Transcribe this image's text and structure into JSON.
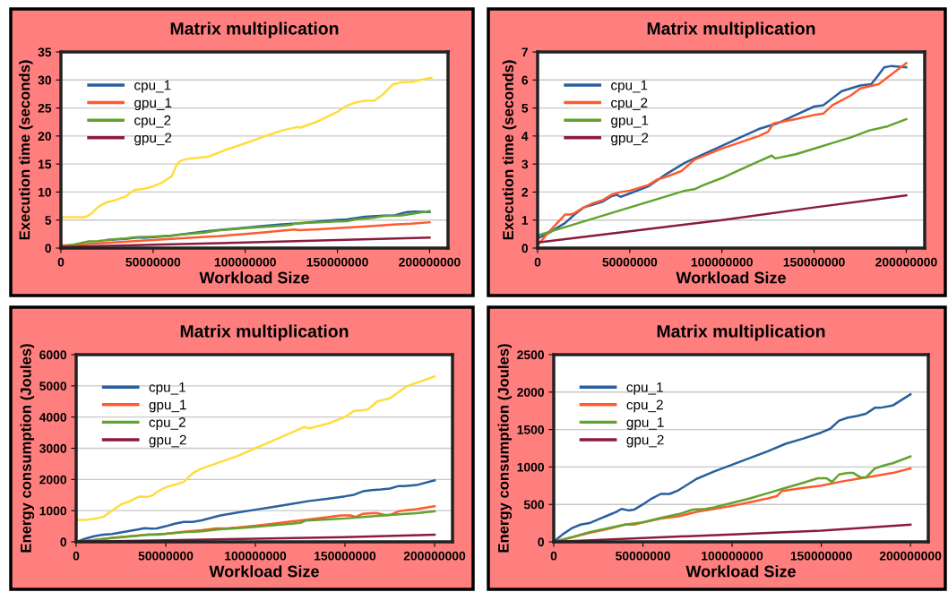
{
  "chart_data": [
    {
      "type": "line",
      "title": "Matrix multiplication",
      "xlabel": "Workload Size",
      "ylabel": "Execution time (seconds)",
      "xlim": [
        0,
        210000000
      ],
      "xticks": [
        0,
        50000000,
        100000000,
        150000000,
        200000000
      ],
      "ylim": [
        0,
        35
      ],
      "yticks": [
        0,
        5,
        10,
        15,
        20,
        25,
        30,
        35
      ],
      "grid": "y",
      "legend": "top left",
      "marker": "none",
      "line_style": "solid",
      "series": [
        {
          "name": "cpu_1",
          "color": "#2a5f9e",
          "x": [
            25000000,
            30000000,
            35000000,
            40000000,
            43000000,
            45000000,
            50000000,
            60000000,
            70000000,
            80000000,
            90000000,
            100000000,
            110000000,
            120000000,
            130000000,
            140000000,
            150000000,
            155000000,
            160000000,
            165000000,
            175000000,
            181000000,
            184000000,
            188000000,
            192000000,
            200000000
          ],
          "values": [
            1.45,
            1.55,
            1.65,
            1.85,
            1.9,
            1.83,
            1.95,
            2.2,
            2.65,
            3.05,
            3.35,
            3.65,
            3.95,
            4.25,
            4.45,
            4.75,
            5.05,
            5.1,
            5.35,
            5.6,
            5.8,
            5.85,
            6.1,
            6.45,
            6.5,
            6.45
          ]
        },
        {
          "name": "gpu_1",
          "color": "#ff5a2e",
          "x": [
            0,
            10000000,
            20000000,
            30000000,
            40000000,
            50000000,
            60000000,
            70000000,
            80000000,
            85000000,
            90000000,
            100000000,
            110000000,
            120000000,
            127000000,
            129000000,
            140000000,
            150000000,
            160000000,
            170000000,
            180000000,
            190000000,
            200000000
          ],
          "values": [
            0.45,
            0.65,
            0.85,
            1.05,
            1.25,
            1.45,
            1.65,
            1.85,
            2.05,
            2.1,
            2.25,
            2.5,
            2.8,
            3.1,
            3.3,
            3.2,
            3.35,
            3.55,
            3.75,
            3.95,
            4.2,
            4.35,
            4.6
          ]
        },
        {
          "color": "#ffdd3c",
          "x": [
            0,
            5000000,
            10000000,
            13000000,
            16000000,
            20000000,
            25000000,
            30000000,
            35000000,
            40000000,
            45000000,
            50000000,
            55000000,
            60000000,
            63000000,
            65000000,
            70000000,
            80000000,
            90000000,
            100000000,
            110000000,
            120000000,
            128000000,
            130000000,
            140000000,
            150000000,
            155000000,
            160000000,
            165000000,
            170000000,
            175000000,
            180000000,
            185000000,
            190000000,
            195000000,
            201000000
          ],
          "values": [
            5.5,
            5.5,
            5.5,
            5.5,
            6,
            7.3,
            8.2,
            8.6,
            9.2,
            10.4,
            10.6,
            11,
            11.7,
            12.8,
            15,
            15.6,
            16,
            16.3,
            17.6,
            18.7,
            19.9,
            21,
            21.6,
            21.5,
            22.7,
            24.3,
            25.4,
            26,
            26.3,
            26.3,
            27.5,
            29.2,
            29.6,
            29.6,
            30,
            30.4
          ]
        },
        {
          "name": "cpu_2",
          "color": "#62a32e",
          "x": [
            0,
            5000000,
            10000000,
            15000000,
            18000000,
            20000000,
            25000000,
            30000000,
            35000000,
            40000000,
            45000000,
            50000000,
            60000000,
            65000000,
            70000000,
            78000000,
            85000000,
            100000000,
            120000000,
            125000000,
            128000000,
            140000000,
            150000000,
            155000000,
            160000000,
            170000000,
            175000000,
            185000000,
            200000000
          ],
          "values": [
            0.1,
            0.5,
            0.85,
            1.2,
            1.2,
            1.25,
            1.45,
            1.6,
            1.7,
            1.9,
            2.0,
            2.05,
            2.25,
            2.45,
            2.55,
            2.75,
            3.15,
            3.55,
            4.0,
            4.15,
            4.45,
            4.6,
            4.75,
            4.8,
            5.1,
            5.45,
            5.7,
            5.85,
            6.6
          ]
        },
        {
          "name": "gpu_2",
          "color": "#8b1a3e",
          "x": [
            0,
            50000000,
            100000000,
            150000000,
            200000000
          ],
          "values": [
            0.2,
            0.6,
            1.0,
            1.45,
            1.88
          ]
        }
      ]
    },
    {
      "type": "line",
      "title": "Matrix multiplication",
      "xlabel": "Workload Size",
      "ylabel": "Execution time (seconds)",
      "xlim": [
        0,
        210000000
      ],
      "xticks": [
        0,
        50000000,
        100000000,
        150000000,
        200000000
      ],
      "ylim": [
        0,
        7
      ],
      "yticks": [
        0,
        1,
        2,
        3,
        4,
        5,
        6,
        7
      ],
      "grid": "y",
      "legend": "top left",
      "marker": "none",
      "line_style": "solid",
      "series": [
        {
          "name": "cpu_1",
          "color": "#2a5f9e",
          "x": [
            0,
            5000000,
            10000000,
            15000000,
            20000000,
            25000000,
            30000000,
            35000000,
            40000000,
            43000000,
            45000000,
            50000000,
            60000000,
            70000000,
            80000000,
            90000000,
            100000000,
            110000000,
            120000000,
            130000000,
            140000000,
            150000000,
            155000000,
            160000000,
            165000000,
            175000000,
            181000000,
            184000000,
            188000000,
            192000000,
            200000000
          ],
          "values": [
            0.35,
            0.5,
            0.7,
            0.9,
            1.2,
            1.45,
            1.55,
            1.65,
            1.85,
            1.9,
            1.83,
            1.95,
            2.2,
            2.65,
            3.05,
            3.35,
            3.65,
            3.95,
            4.25,
            4.45,
            4.75,
            5.05,
            5.1,
            5.35,
            5.6,
            5.8,
            5.85,
            6.1,
            6.45,
            6.5,
            6.45
          ]
        },
        {
          "name": "cpu_2",
          "color": "#ff5a2e",
          "x": [
            0,
            5000000,
            10000000,
            15000000,
            18000000,
            20000000,
            25000000,
            30000000,
            35000000,
            40000000,
            45000000,
            50000000,
            60000000,
            65000000,
            70000000,
            78000000,
            85000000,
            100000000,
            120000000,
            125000000,
            128000000,
            140000000,
            150000000,
            155000000,
            160000000,
            170000000,
            175000000,
            185000000,
            200000000
          ],
          "values": [
            0.1,
            0.5,
            0.85,
            1.2,
            1.2,
            1.25,
            1.45,
            1.6,
            1.7,
            1.9,
            2.0,
            2.05,
            2.25,
            2.45,
            2.55,
            2.75,
            3.15,
            3.55,
            4.0,
            4.15,
            4.45,
            4.6,
            4.75,
            4.8,
            5.1,
            5.45,
            5.7,
            5.85,
            6.6
          ]
        },
        {
          "name": "gpu_1",
          "color": "#62a32e",
          "x": [
            0,
            10000000,
            20000000,
            30000000,
            40000000,
            50000000,
            60000000,
            70000000,
            80000000,
            85000000,
            90000000,
            100000000,
            110000000,
            120000000,
            127000000,
            129000000,
            140000000,
            150000000,
            160000000,
            170000000,
            180000000,
            190000000,
            200000000
          ],
          "values": [
            0.45,
            0.65,
            0.85,
            1.05,
            1.25,
            1.45,
            1.65,
            1.85,
            2.05,
            2.1,
            2.25,
            2.5,
            2.8,
            3.1,
            3.3,
            3.2,
            3.35,
            3.55,
            3.75,
            3.95,
            4.2,
            4.35,
            4.6
          ]
        },
        {
          "name": "gpu_2",
          "color": "#8b1a3e",
          "x": [
            0,
            50000000,
            100000000,
            150000000,
            200000000
          ],
          "values": [
            0.2,
            0.6,
            1.0,
            1.45,
            1.88
          ]
        }
      ]
    },
    {
      "type": "line",
      "title": "Matrix multiplication",
      "xlabel": "Workload Size",
      "ylabel": "Energy consumption (Joules)",
      "xlim": [
        0,
        210000000
      ],
      "xticks": [
        0,
        50000000,
        100000000,
        150000000,
        200000000
      ],
      "ylim": [
        0,
        6000
      ],
      "yticks": [
        0,
        1000,
        2000,
        3000,
        4000,
        5000,
        6000
      ],
      "grid": "y",
      "legend": "top left",
      "marker": "none",
      "line_style": "solid",
      "series": [
        {
          "name": "cpu_1",
          "color": "#2a5f9e",
          "x": [
            0,
            5000000,
            10000000,
            15000000,
            20000000,
            25000000,
            30000000,
            35000000,
            38000000,
            42000000,
            45000000,
            50000000,
            55000000,
            60000000,
            65000000,
            70000000,
            80000000,
            90000000,
            100000000,
            110000000,
            120000000,
            130000000,
            140000000,
            150000000,
            155000000,
            160000000,
            165000000,
            170000000,
            175000000,
            180000000,
            183000000,
            190000000,
            200000000
          ],
          "values": [
            0,
            100,
            180,
            230,
            250,
            300,
            350,
            400,
            440,
            420,
            430,
            500,
            580,
            640,
            640,
            690,
            840,
            940,
            1030,
            1120,
            1210,
            1310,
            1380,
            1460,
            1510,
            1620,
            1660,
            1680,
            1710,
            1790,
            1790,
            1820,
            1970
          ]
        },
        {
          "name": "gpu_1",
          "color": "#ff5a2e",
          "x": [
            0,
            10000000,
            20000000,
            30000000,
            40000000,
            50000000,
            60000000,
            70000000,
            78000000,
            85000000,
            90000000,
            100000000,
            110000000,
            120000000,
            130000000,
            140000000,
            148000000,
            153000000,
            156000000,
            160000000,
            165000000,
            168000000,
            172000000,
            175000000,
            180000000,
            185000000,
            190000000,
            200000000
          ],
          "values": [
            0,
            60,
            130,
            180,
            230,
            260,
            320,
            370,
            430,
            440,
            460,
            520,
            580,
            650,
            720,
            790,
            850,
            850,
            800,
            900,
            920,
            920,
            860,
            860,
            980,
            1020,
            1050,
            1140
          ]
        },
        {
          "color": "#ffdd3c",
          "x": [
            0,
            5000000,
            10000000,
            15000000,
            20000000,
            25000000,
            30000000,
            35000000,
            40000000,
            43000000,
            45000000,
            50000000,
            55000000,
            60000000,
            65000000,
            70000000,
            80000000,
            90000000,
            100000000,
            110000000,
            120000000,
            127000000,
            130000000,
            140000000,
            150000000,
            155000000,
            160000000,
            163000000,
            168000000,
            175000000,
            185000000,
            200000000
          ],
          "values": [
            700,
            700,
            740,
            800,
            1000,
            1200,
            1300,
            1450,
            1440,
            1500,
            1600,
            1750,
            1830,
            1920,
            2200,
            2350,
            2550,
            2750,
            3000,
            3250,
            3500,
            3680,
            3640,
            3780,
            4000,
            4200,
            4220,
            4250,
            4500,
            4600,
            5000,
            5300
          ]
        },
        {
          "name": "cpu_2",
          "color": "#62a32e",
          "x": [
            0,
            10000000,
            20000000,
            30000000,
            40000000,
            45000000,
            50000000,
            60000000,
            70000000,
            80000000,
            90000000,
            100000000,
            110000000,
            120000000,
            125000000,
            128000000,
            140000000,
            150000000,
            160000000,
            170000000,
            180000000,
            190000000,
            200000000
          ],
          "values": [
            0,
            60,
            120,
            170,
            230,
            230,
            260,
            310,
            340,
            400,
            440,
            480,
            530,
            580,
            610,
            680,
            720,
            750,
            800,
            840,
            880,
            920,
            980
          ]
        },
        {
          "name": "gpu_2",
          "color": "#8b1a3e",
          "x": [
            0,
            50000000,
            100000000,
            150000000,
            200000000
          ],
          "values": [
            0,
            50,
            100,
            150,
            230
          ]
        }
      ]
    },
    {
      "type": "line",
      "title": "Matrix multiplication",
      "xlabel": "Workload Size",
      "ylabel": "Energy consumption (Joules)",
      "xlim": [
        0,
        210000000
      ],
      "xticks": [
        0,
        50000000,
        100000000,
        150000000,
        200000000
      ],
      "ylim": [
        0,
        2500
      ],
      "yticks": [
        0,
        500,
        1000,
        1500,
        2000,
        2500
      ],
      "grid": "y",
      "legend": "top left",
      "marker": "none",
      "line_style": "solid",
      "series": [
        {
          "name": "cpu_1",
          "color": "#2a5f9e",
          "x": [
            0,
            5000000,
            10000000,
            15000000,
            20000000,
            25000000,
            30000000,
            35000000,
            38000000,
            42000000,
            45000000,
            50000000,
            55000000,
            60000000,
            65000000,
            70000000,
            80000000,
            90000000,
            100000000,
            110000000,
            120000000,
            130000000,
            140000000,
            150000000,
            155000000,
            160000000,
            165000000,
            170000000,
            175000000,
            180000000,
            183000000,
            190000000,
            200000000
          ],
          "values": [
            0,
            100,
            180,
            230,
            250,
            300,
            350,
            400,
            440,
            420,
            430,
            500,
            580,
            640,
            640,
            690,
            840,
            940,
            1030,
            1120,
            1210,
            1310,
            1380,
            1460,
            1510,
            1620,
            1660,
            1680,
            1710,
            1790,
            1790,
            1820,
            1970
          ]
        },
        {
          "name": "cpu_2",
          "color": "#ff5a2e",
          "x": [
            0,
            10000000,
            20000000,
            30000000,
            40000000,
            45000000,
            50000000,
            60000000,
            70000000,
            80000000,
            90000000,
            100000000,
            110000000,
            120000000,
            125000000,
            128000000,
            140000000,
            150000000,
            160000000,
            170000000,
            180000000,
            190000000,
            200000000
          ],
          "values": [
            0,
            60,
            120,
            170,
            230,
            230,
            260,
            310,
            340,
            400,
            440,
            480,
            530,
            580,
            610,
            680,
            720,
            750,
            800,
            840,
            880,
            920,
            980
          ]
        },
        {
          "name": "gpu_1",
          "color": "#62a32e",
          "x": [
            0,
            10000000,
            20000000,
            30000000,
            40000000,
            50000000,
            60000000,
            70000000,
            78000000,
            85000000,
            90000000,
            100000000,
            110000000,
            120000000,
            130000000,
            140000000,
            148000000,
            153000000,
            156000000,
            160000000,
            165000000,
            168000000,
            172000000,
            175000000,
            180000000,
            185000000,
            190000000,
            200000000
          ],
          "values": [
            0,
            60,
            130,
            180,
            230,
            260,
            320,
            370,
            430,
            440,
            460,
            520,
            580,
            650,
            720,
            790,
            850,
            850,
            800,
            900,
            920,
            920,
            860,
            860,
            980,
            1020,
            1050,
            1140
          ]
        },
        {
          "name": "gpu_2",
          "color": "#8b1a3e",
          "x": [
            0,
            50000000,
            100000000,
            150000000,
            200000000
          ],
          "values": [
            0,
            50,
            100,
            150,
            230
          ]
        }
      ]
    }
  ]
}
